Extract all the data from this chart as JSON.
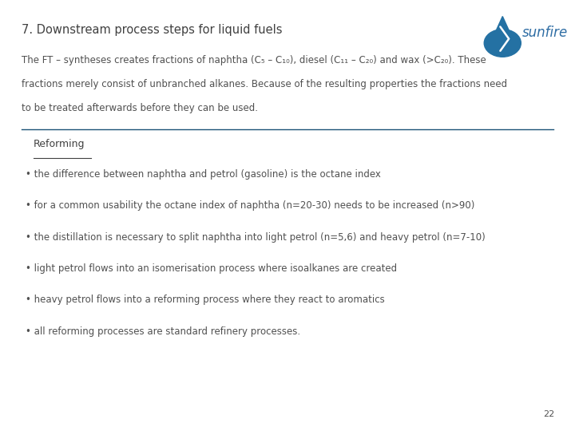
{
  "title": "7. Downstream process steps for liquid fuels",
  "title_color": "#404040",
  "title_fontsize": 10.5,
  "bg_color": "#ffffff",
  "body_text_line1": "The FT – syntheses creates fractions of naphtha (C₅ – C₁₀), diesel (C₁₁ – C₂₀) and wax (>C₂₀). These",
  "body_text_line2": "fractions merely consist of unbranched alkanes. Because of the resulting properties the fractions need",
  "body_text_line3": "to be treated afterwards before they can be used.",
  "body_fontsize": 8.5,
  "body_color": "#505050",
  "section_title": "Reforming",
  "section_title_fontsize": 9,
  "section_title_color": "#404040",
  "section_line_color": "#1a5276",
  "bullet_points": [
    "the difference between naphtha and petrol (gasoline) is the octane index",
    "for a common usability the octane index of naphtha (n=20-30) needs to be increased (n>90)",
    "the distillation is necessary to split naphtha into light petrol (n=5,6) and heavy petrol (n=7-10)",
    "light petrol flows into an isomerisation process where isoalkanes are created",
    "heavy petrol flows into a reforming process where they react to aromatics",
    "all reforming processes are standard refinery processes."
  ],
  "bullet_fontsize": 8.5,
  "bullet_color": "#505050",
  "bullet_char": "•",
  "page_number": "22",
  "page_number_fontsize": 8,
  "page_number_color": "#505050",
  "logo_text": "sunfire",
  "logo_color": "#2e6da4",
  "logo_fontsize": 12,
  "logo_drop_color": "#2471a3"
}
